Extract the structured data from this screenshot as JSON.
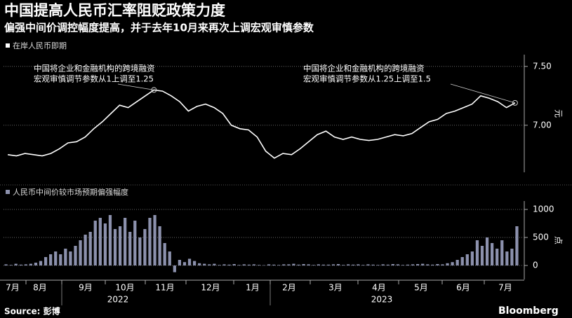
{
  "chart_data": [
    {
      "type": "line",
      "title": "中国提高人民币汇率阻贬政策力度",
      "subtitle": "偏强中间价调控幅度提高，并于去年10月来再次上调宏观审慎参数",
      "legend": "在岸人民币即期",
      "axis_label": "元",
      "color": "#ffffff",
      "ylim": [
        6.6,
        7.6
      ],
      "yticks": [
        {
          "value": 7,
          "label": "7.00"
        },
        {
          "value": 7.5,
          "label": "7.50"
        }
      ],
      "grid": true,
      "annotations": [
        [
          "中国将企业和金融机构的跨境融资",
          "宏观审慎调节参数从1上调至1.25"
        ],
        [
          "中国将企业和金融机构的跨境融资",
          "宏观审慎调节参数从1.25上调至1.5"
        ]
      ],
      "values": [
        6.75,
        6.74,
        6.76,
        6.75,
        6.74,
        6.76,
        6.8,
        6.85,
        6.86,
        6.9,
        6.97,
        7.03,
        7.1,
        7.17,
        7.15,
        7.2,
        7.25,
        7.3,
        7.29,
        7.25,
        7.2,
        7.12,
        7.16,
        7.18,
        7.15,
        7.1,
        7.0,
        6.97,
        6.96,
        6.9,
        6.78,
        6.72,
        6.76,
        6.75,
        6.8,
        6.86,
        6.92,
        6.95,
        6.9,
        6.88,
        6.9,
        6.88,
        6.87,
        6.88,
        6.9,
        6.92,
        6.91,
        6.93,
        6.98,
        7.03,
        7.05,
        7.1,
        7.12,
        7.15,
        7.18,
        7.25,
        7.23,
        7.2,
        7.15,
        7.19
      ]
    },
    {
      "type": "bar",
      "legend": "人民币中间价较市场预期偏强幅度",
      "axis_label": "点",
      "color": "#8c91ad",
      "ylim": [
        -250,
        1150
      ],
      "yticks": [
        0,
        500,
        1000
      ],
      "xtick_labels": [
        "7月",
        "8月",
        "9月",
        "10月",
        "11月",
        "12月",
        "1月",
        "2月",
        "3月",
        "4月",
        "5月",
        "6月",
        "7月"
      ],
      "years": [
        "2022",
        "2023"
      ],
      "source": "Source: 彭博",
      "brand": "Bloomberg",
      "values": [
        20,
        10,
        30,
        15,
        20,
        30,
        50,
        80,
        150,
        200,
        250,
        200,
        300,
        250,
        350,
        450,
        550,
        600,
        800,
        850,
        750,
        900,
        650,
        700,
        850,
        600,
        800,
        500,
        650,
        850,
        900,
        700,
        400,
        250,
        -120,
        100,
        60,
        120,
        80,
        40,
        30,
        20,
        30,
        10,
        20,
        15,
        25,
        10,
        20,
        15,
        20,
        10,
        5,
        20,
        15,
        10,
        20,
        20,
        30,
        15,
        25,
        20,
        10,
        20,
        15,
        15,
        20,
        25,
        10,
        20,
        15,
        20,
        10,
        20,
        15,
        10,
        20,
        15,
        25,
        20,
        10,
        15,
        20,
        25,
        30,
        20,
        15,
        25,
        20,
        40,
        60,
        100,
        150,
        200,
        250,
        450,
        350,
        500,
        400,
        300,
        450,
        250,
        300,
        700
      ]
    }
  ]
}
